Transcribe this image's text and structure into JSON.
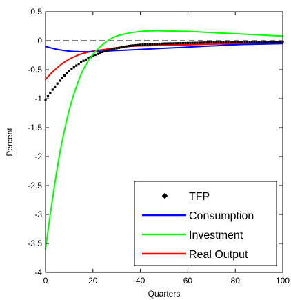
{
  "chart_data": {
    "type": "line",
    "xlabel": "Quarters",
    "ylabel": "Percent",
    "xlim": [
      0,
      100
    ],
    "ylim": [
      -4,
      0.5
    ],
    "xticks": [
      0,
      20,
      40,
      60,
      80,
      100
    ],
    "xtick_labels": [
      "0",
      "20",
      "40",
      "60",
      "80",
      "100"
    ],
    "yticks": [
      0.5,
      0,
      -0.5,
      -1,
      -1.5,
      -2,
      -2.5,
      -3,
      -3.5,
      -4
    ],
    "ytick_labels": [
      "0.5",
      "0",
      "-0.5",
      "-1",
      "-1.5",
      "-2",
      "-2.5",
      "-3",
      "-3.5",
      "-4"
    ],
    "grid": false,
    "legend_position": "bottom-right",
    "zero_line": {
      "y": 0,
      "style": "dashed",
      "color": "#000000"
    },
    "series": [
      {
        "name": "TFP",
        "style": "dots",
        "color": "#000000",
        "x": [
          0,
          2,
          4,
          6,
          8,
          10,
          12,
          15,
          20,
          25,
          30,
          35,
          40,
          50,
          60,
          70,
          80,
          90,
          100
        ],
        "y": [
          -1.02,
          -0.9,
          -0.79,
          -0.69,
          -0.6,
          -0.52,
          -0.46,
          -0.37,
          -0.26,
          -0.18,
          -0.13,
          -0.09,
          -0.07,
          -0.05,
          -0.04,
          -0.03,
          -0.03,
          -0.02,
          -0.02
        ]
      },
      {
        "name": "Consumption",
        "style": "line",
        "color": "#0000ff",
        "x": [
          0,
          5,
          10,
          15,
          20,
          25,
          30,
          40,
          50,
          60,
          70,
          80,
          90,
          100
        ],
        "y": [
          -0.1,
          -0.15,
          -0.18,
          -0.19,
          -0.19,
          -0.18,
          -0.17,
          -0.15,
          -0.13,
          -0.11,
          -0.09,
          -0.07,
          -0.06,
          -0.05
        ]
      },
      {
        "name": "Investment",
        "style": "line",
        "color": "#00ff00",
        "x": [
          0,
          2,
          4,
          6,
          8,
          10,
          12,
          15,
          18,
          21,
          24,
          27,
          30,
          35,
          40,
          45,
          50,
          55,
          60,
          70,
          80,
          90,
          100
        ],
        "y": [
          -3.6,
          -3.0,
          -2.45,
          -1.95,
          -1.55,
          -1.2,
          -0.92,
          -0.58,
          -0.35,
          -0.19,
          -0.07,
          0.02,
          0.08,
          0.13,
          0.16,
          0.17,
          0.17,
          0.165,
          0.16,
          0.14,
          0.12,
          0.1,
          0.08
        ]
      },
      {
        "name": "Real Output",
        "style": "line",
        "color": "#ff0000",
        "x": [
          0,
          2,
          4,
          6,
          8,
          10,
          12,
          15,
          20,
          25,
          30,
          35,
          40,
          50,
          60,
          70,
          80,
          90,
          100
        ],
        "y": [
          -0.67,
          -0.58,
          -0.5,
          -0.43,
          -0.37,
          -0.32,
          -0.28,
          -0.23,
          -0.18,
          -0.15,
          -0.12,
          -0.1,
          -0.09,
          -0.08,
          -0.07,
          -0.06,
          -0.05,
          -0.04,
          -0.03
        ]
      }
    ]
  }
}
